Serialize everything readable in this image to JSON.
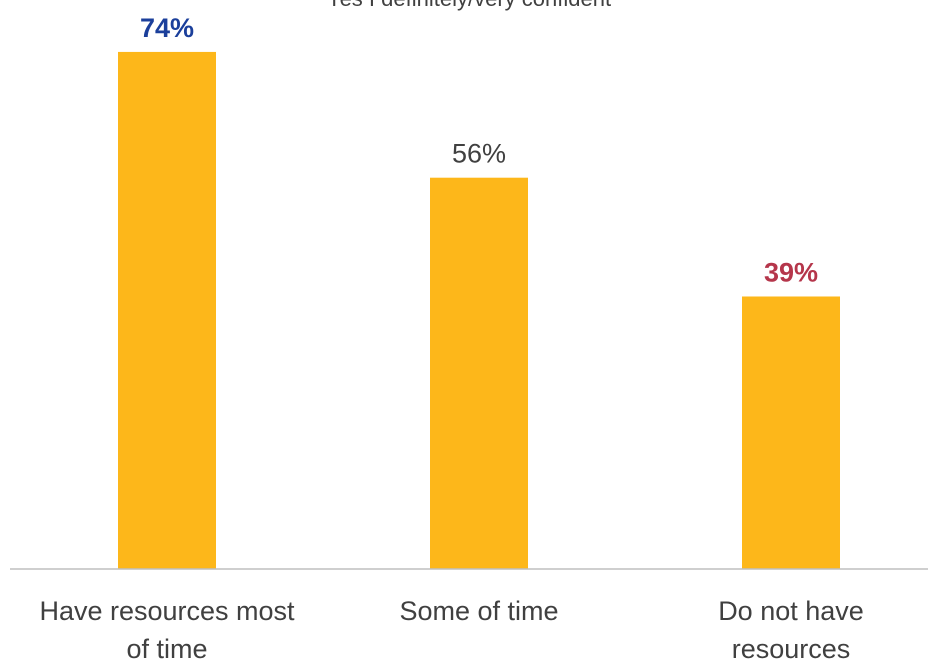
{
  "chart_data": {
    "type": "bar",
    "title": "",
    "subtitle_partial": "Yes I definitely/very confident",
    "categories": [
      [
        "Have resources most",
        "of time"
      ],
      [
        "Some of time"
      ],
      [
        "Do not have",
        "resources"
      ]
    ],
    "values": [
      74,
      56,
      39
    ],
    "value_labels": [
      "74%",
      "56%",
      "39%"
    ],
    "value_label_styles": [
      {
        "color": "#1B3F9B",
        "bold": true
      },
      {
        "color": "#404040",
        "bold": false
      },
      {
        "color": "#B5364B",
        "bold": true
      }
    ],
    "bar_color": "#FDB71A",
    "axis_color": "#BFBFBF",
    "category_label_color": "#404040",
    "ylim": [
      0,
      80
    ],
    "grid": false,
    "legend": "none"
  }
}
